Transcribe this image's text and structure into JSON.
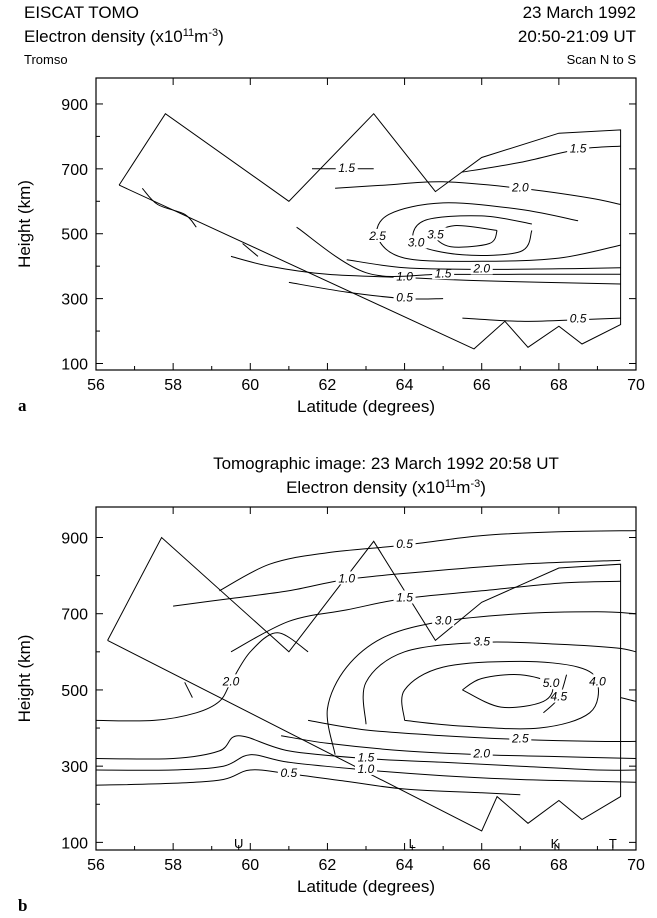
{
  "panel_a": {
    "header": {
      "left_line1": "EISCAT TOMO",
      "left_line2_prefix": "Electron density (x10",
      "exp_11": "11",
      "left_line2_mid": "m",
      "exp_m3": "-3",
      "left_line2_suffix": ")",
      "left_line3": "Tromso",
      "right_line1": "23 March 1992",
      "right_line2": "20:50-21:09 UT",
      "right_line3": "Scan N to S"
    },
    "panel_label": "a"
  },
  "panel_b": {
    "header": {
      "line1": "Tomographic image: 23 March 1992  20:58 UT",
      "line2_prefix": "Electron density (x10",
      "exp_11": "11",
      "line2_mid": "m",
      "exp_m3": "-3",
      "line2_suffix": ")"
    },
    "panel_label": "b",
    "stations": [
      "U",
      "L",
      "K",
      "T"
    ]
  },
  "chart_data": [
    {
      "type": "contour",
      "xlabel": "Latitude (degrees)",
      "ylabel": "Height (km)",
      "xlim": [
        56,
        70
      ],
      "ylim": [
        80,
        980
      ],
      "xticks": [
        56,
        58,
        60,
        62,
        64,
        66,
        68,
        70
      ],
      "yticks": [
        100,
        300,
        500,
        700,
        900
      ],
      "scan_outline": [
        [
          56.6,
          650
        ],
        [
          57.8,
          870
        ],
        [
          61.0,
          600
        ],
        [
          63.2,
          870
        ],
        [
          64.8,
          630
        ],
        [
          66.0,
          735
        ],
        [
          68.0,
          810
        ],
        [
          69.6,
          820
        ],
        [
          69.6,
          220
        ],
        [
          68.6,
          160
        ],
        [
          68.0,
          215
        ],
        [
          67.2,
          150
        ],
        [
          66.6,
          230
        ],
        [
          65.8,
          145
        ],
        [
          56.6,
          650
        ]
      ],
      "contours": [
        {
          "label": "0.5",
          "points": [
            [
              61,
              350
            ],
            [
              62.5,
              320
            ],
            [
              64,
              300
            ],
            [
              65,
              300
            ]
          ]
        },
        {
          "label": "0.5",
          "points": [
            [
              65.5,
              240
            ],
            [
              67,
              230
            ],
            [
              68.5,
              235
            ],
            [
              69.6,
              240
            ]
          ]
        },
        {
          "label": "1.0",
          "points": [
            [
              59.5,
              430
            ],
            [
              60.5,
              400
            ],
            [
              62,
              375
            ],
            [
              64,
              365
            ],
            [
              66,
              355
            ],
            [
              69.6,
              345
            ]
          ]
        },
        {
          "label": "1.5",
          "points": [
            [
              61.2,
              520
            ],
            [
              63,
              380
            ],
            [
              65,
              375
            ],
            [
              67,
              375
            ],
            [
              69.6,
              375
            ]
          ]
        },
        {
          "label": "2.0",
          "points": [
            [
              62.5,
              420
            ],
            [
              64,
              395
            ],
            [
              66,
              390
            ],
            [
              68,
              392
            ],
            [
              69.6,
              395
            ]
          ]
        },
        {
          "label": "2.5",
          "points": [
            [
              69.6,
              465
            ],
            [
              68,
              425
            ],
            [
              66,
              415
            ],
            [
              64,
              425
            ],
            [
              63.3,
              490
            ],
            [
              63.6,
              560
            ],
            [
              65,
              595
            ],
            [
              67,
              575
            ],
            [
              68.5,
              540
            ]
          ]
        },
        {
          "label": "3.0",
          "points": [
            [
              67.3,
              510
            ],
            [
              67,
              445
            ],
            [
              65.5,
              435
            ],
            [
              64.3,
              470
            ],
            [
              64.5,
              540
            ],
            [
              66,
              555
            ],
            [
              67.3,
              530
            ]
          ]
        },
        {
          "label": "3.5",
          "points": [
            [
              66.4,
              510
            ],
            [
              66.2,
              470
            ],
            [
              65.2,
              460
            ],
            [
              64.8,
              495
            ],
            [
              65.3,
              525
            ],
            [
              66.4,
              510
            ]
          ]
        },
        {
          "label": "2.0",
          "points": [
            [
              62.2,
              640
            ],
            [
              63.5,
              650
            ],
            [
              65,
              660
            ],
            [
              67,
              640
            ],
            [
              68.8,
              610
            ],
            [
              69.6,
              590
            ]
          ]
        },
        {
          "label": "1.5",
          "points": [
            [
              61.6,
              700
            ],
            [
              62.5,
              700
            ],
            [
              63.2,
              700
            ]
          ]
        },
        {
          "label": "1.5",
          "points": [
            [
              65.5,
              690
            ],
            [
              67,
              720
            ],
            [
              68.5,
              760
            ],
            [
              69.6,
              770
            ]
          ]
        },
        {
          "label": "",
          "points": [
            [
              57.2,
              640
            ],
            [
              57.6,
              590
            ],
            [
              58.3,
              560
            ],
            [
              58.6,
              520
            ]
          ]
        },
        {
          "label": "",
          "points": [
            [
              59.8,
              470
            ],
            [
              60.2,
              430
            ]
          ]
        }
      ]
    },
    {
      "type": "contour",
      "xlabel": "Latitude (degrees)",
      "ylabel": "Height (km)",
      "xlim": [
        56,
        70
      ],
      "ylim": [
        80,
        980
      ],
      "xticks": [
        56,
        58,
        60,
        62,
        64,
        66,
        68,
        70
      ],
      "yticks": [
        100,
        300,
        500,
        700,
        900
      ],
      "station_lat": [
        59.7,
        64.2,
        67.9,
        69.4
      ],
      "scan_outline": [
        [
          56.3,
          630
        ],
        [
          57.7,
          900
        ],
        [
          61.0,
          600
        ],
        [
          63.2,
          890
        ],
        [
          64.8,
          630
        ],
        [
          66.0,
          730
        ],
        [
          68.0,
          820
        ],
        [
          69.6,
          830
        ],
        [
          69.6,
          220
        ],
        [
          68.6,
          160
        ],
        [
          68.0,
          210
        ],
        [
          67.2,
          150
        ],
        [
          66.4,
          220
        ],
        [
          66.0,
          130
        ],
        [
          56.3,
          630
        ]
      ],
      "contours": [
        {
          "label": "0.5",
          "points": [
            [
              56,
              250
            ],
            [
              58,
              255
            ],
            [
              59.3,
              265
            ],
            [
              60,
              290
            ],
            [
              61,
              280
            ],
            [
              62.5,
              260
            ],
            [
              64,
              240
            ],
            [
              66,
              230
            ],
            [
              67,
              225
            ]
          ]
        },
        {
          "label": "1.0",
          "points": [
            [
              56,
              290
            ],
            [
              58,
              290
            ],
            [
              59.3,
              300
            ],
            [
              60,
              330
            ],
            [
              61,
              310
            ],
            [
              63,
              290
            ],
            [
              65,
              275
            ],
            [
              67,
              265
            ],
            [
              69,
              260
            ],
            [
              70,
              258
            ]
          ]
        },
        {
          "label": "1.5",
          "points": [
            [
              56,
              320
            ],
            [
              58,
              320
            ],
            [
              59.2,
              340
            ],
            [
              59.7,
              380
            ],
            [
              61,
              340
            ],
            [
              63,
              320
            ],
            [
              65,
              310
            ],
            [
              67,
              300
            ],
            [
              69,
              290
            ],
            [
              70,
              290
            ]
          ]
        },
        {
          "label": "2.0",
          "points": [
            [
              56,
              420
            ],
            [
              57.5,
              420
            ],
            [
              58.6,
              440
            ],
            [
              59.2,
              470
            ],
            [
              59.5,
              520
            ],
            [
              60,
              600
            ],
            [
              60.7,
              650
            ],
            [
              61.5,
              600
            ]
          ]
        },
        {
          "label": "2.0",
          "points": [
            [
              60.8,
              380
            ],
            [
              62,
              360
            ],
            [
              64,
              340
            ],
            [
              66,
              330
            ],
            [
              68,
              325
            ],
            [
              70,
              320
            ]
          ]
        },
        {
          "label": "2.5",
          "points": [
            [
              61.5,
              420
            ],
            [
              63,
              395
            ],
            [
              65,
              380
            ],
            [
              67,
              370
            ],
            [
              69,
              365
            ],
            [
              70,
              365
            ]
          ]
        },
        {
          "label": "3.0",
          "points": [
            [
              62.2,
              330
            ],
            [
              62,
              450
            ],
            [
              62.5,
              560
            ],
            [
              63.5,
              640
            ],
            [
              65,
              680
            ],
            [
              67,
              700
            ],
            [
              69,
              705
            ],
            [
              70,
              700
            ]
          ]
        },
        {
          "label": "3.5",
          "points": [
            [
              63,
              410
            ],
            [
              63,
              520
            ],
            [
              64,
              600
            ],
            [
              66,
              625
            ],
            [
              68,
              620
            ],
            [
              69.5,
              610
            ],
            [
              70,
              600
            ]
          ]
        },
        {
          "label": "4.0",
          "points": [
            [
              64,
              420
            ],
            [
              64,
              500
            ],
            [
              65,
              560
            ],
            [
              67,
              575
            ],
            [
              68.5,
              560
            ],
            [
              69,
              520
            ],
            [
              68.8,
              440
            ],
            [
              67.5,
              400
            ],
            [
              65.5,
              405
            ],
            [
              64,
              420
            ]
          ]
        },
        {
          "label": "4.5",
          "points": [
            [
              68.2,
              540
            ],
            [
              68,
              480
            ],
            [
              67.6,
              440
            ]
          ]
        },
        {
          "label": "5.0",
          "points": [
            [
              65.5,
              500
            ],
            [
              66,
              530
            ],
            [
              67,
              540
            ],
            [
              67.8,
              515
            ],
            [
              67.6,
              470
            ],
            [
              66.5,
              455
            ],
            [
              65.5,
              500
            ]
          ]
        },
        {
          "label": "1.5",
          "points": [
            [
              59.5,
              600
            ],
            [
              61,
              680
            ],
            [
              62.5,
              710
            ],
            [
              64,
              740
            ],
            [
              66,
              760
            ],
            [
              68,
              780
            ],
            [
              69.6,
              785
            ]
          ]
        },
        {
          "label": "1.0",
          "points": [
            [
              58,
              720
            ],
            [
              59.5,
              740
            ],
            [
              61,
              760
            ],
            [
              62.5,
              790
            ],
            [
              64.5,
              810
            ],
            [
              67,
              830
            ],
            [
              69.6,
              840
            ]
          ]
        },
        {
          "label": "0.5",
          "points": [
            [
              59.2,
              760
            ],
            [
              60.5,
              830
            ],
            [
              62,
              860
            ],
            [
              64,
              880
            ],
            [
              66,
              905
            ],
            [
              68,
              915
            ],
            [
              70,
              918
            ]
          ]
        },
        {
          "label": "",
          "points": [
            [
              69.6,
              480
            ],
            [
              70,
              470
            ]
          ]
        },
        {
          "label": "",
          "points": [
            [
              58.3,
              520
            ],
            [
              58.5,
              480
            ]
          ]
        }
      ]
    }
  ]
}
